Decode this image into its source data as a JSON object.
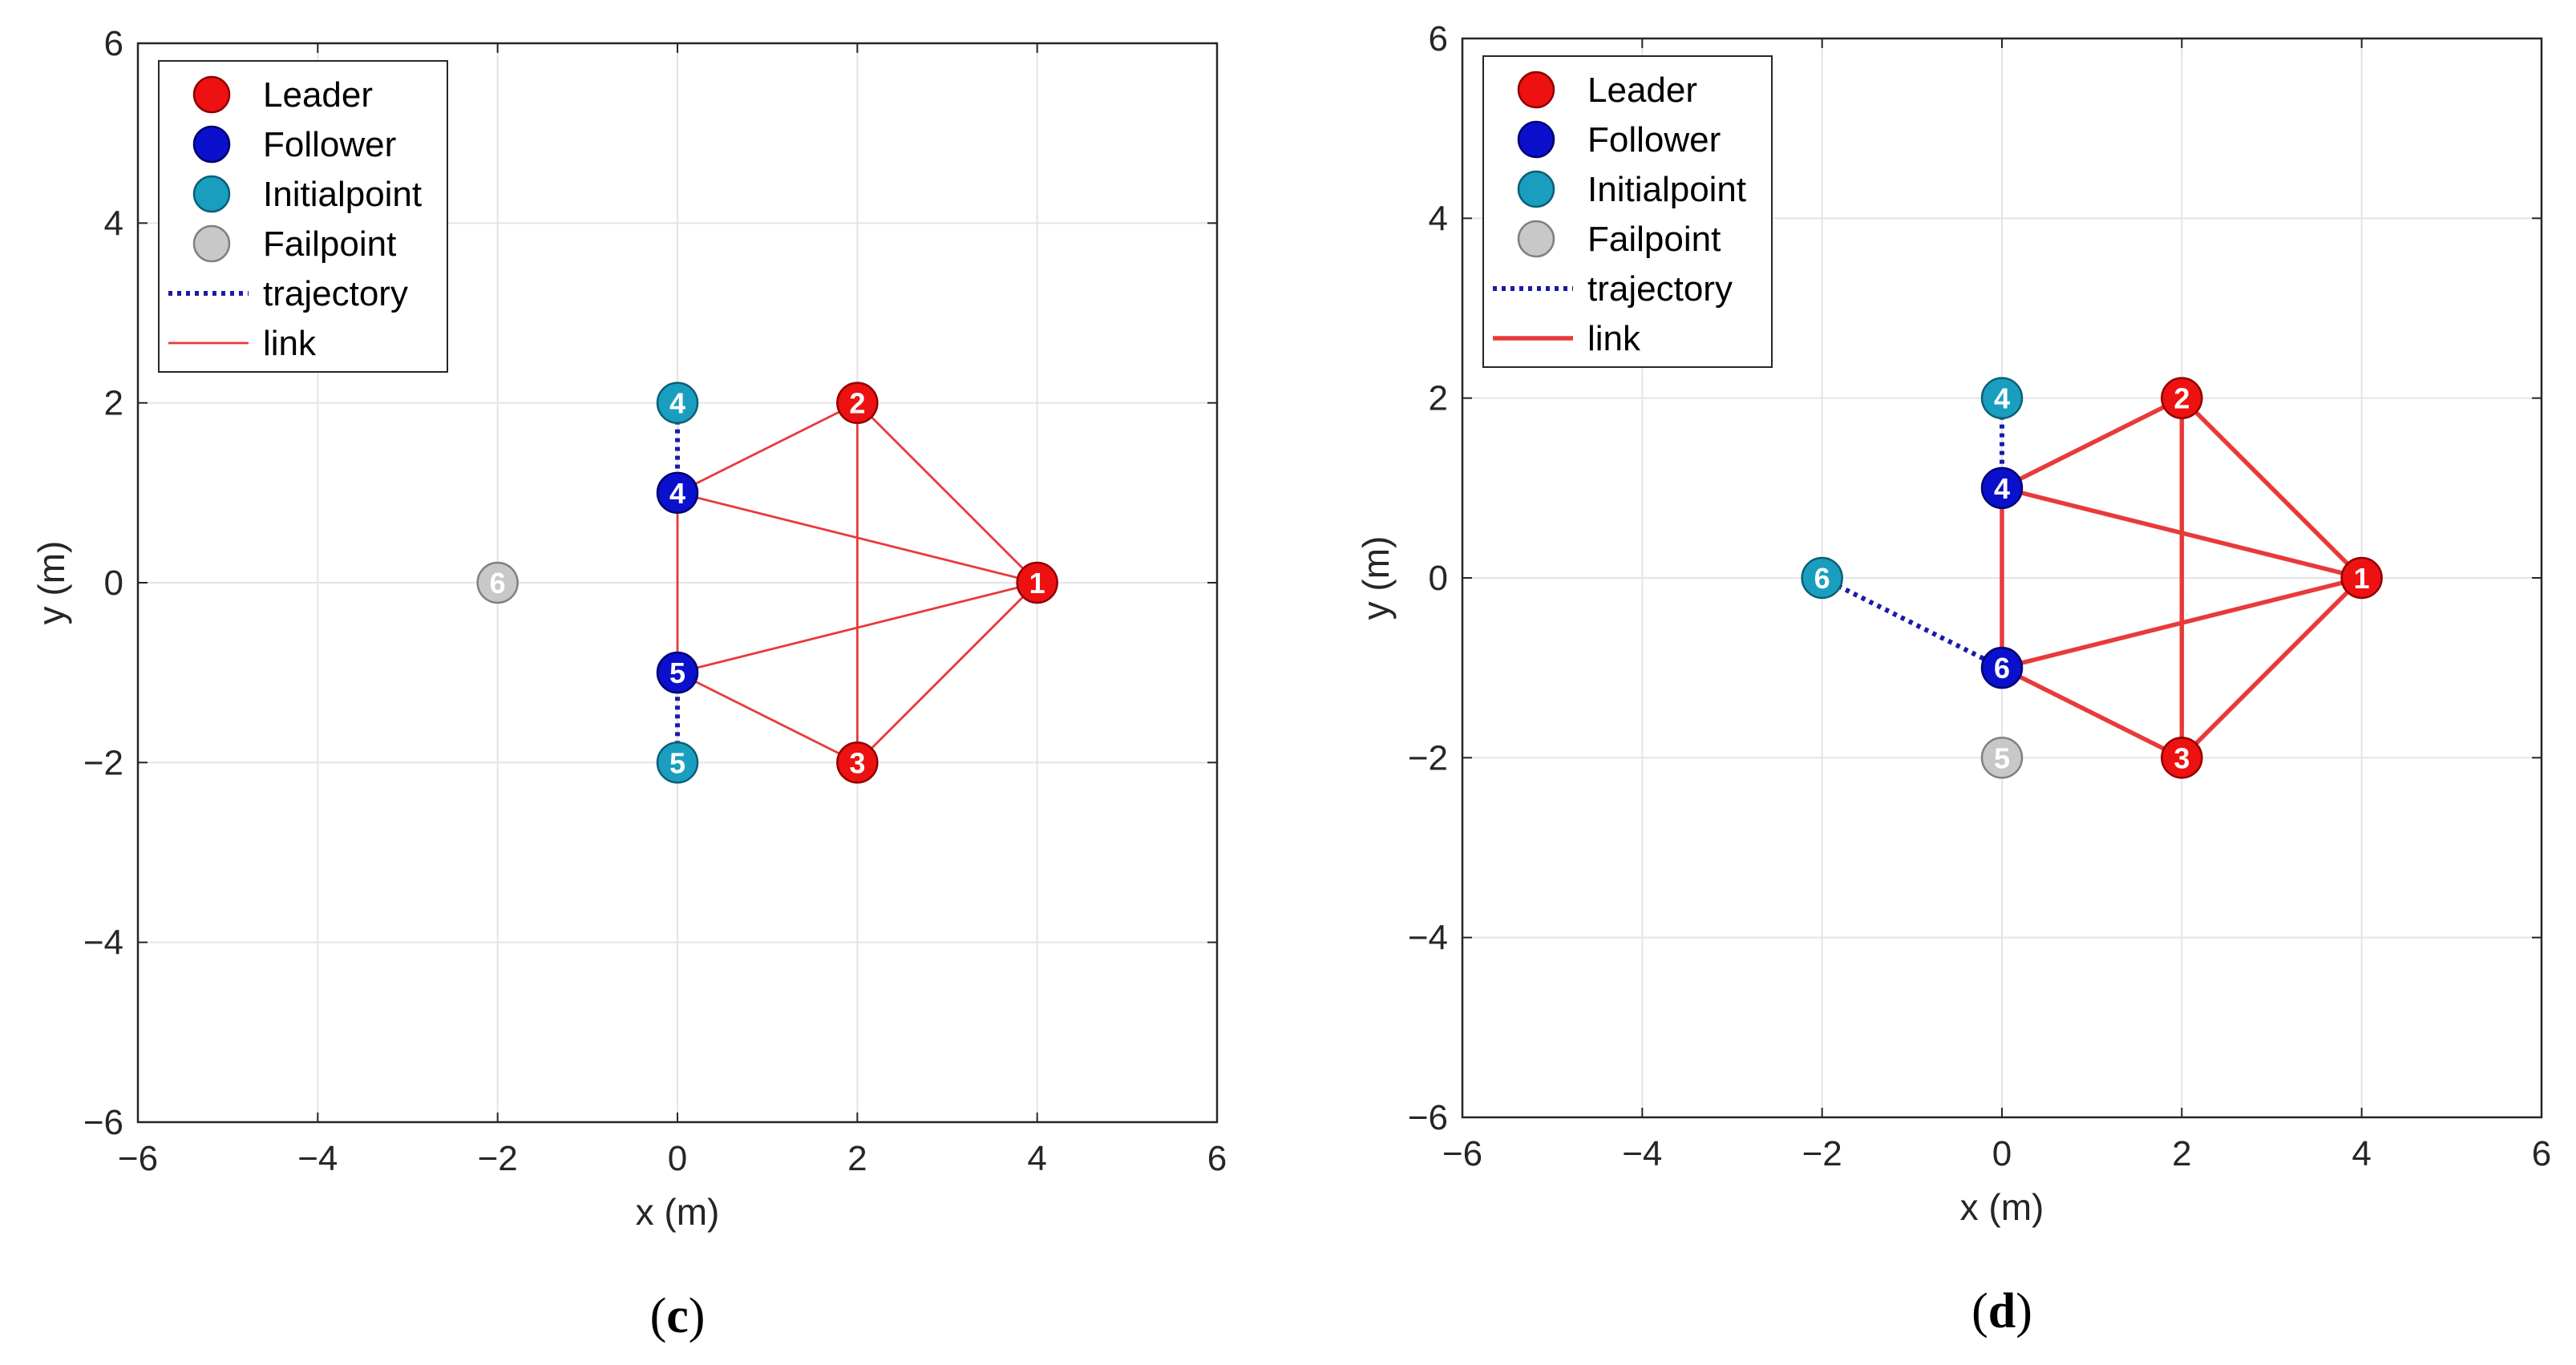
{
  "chart_data": [
    {
      "type": "scatter",
      "caption_letter": "c",
      "xlabel": "x (m)",
      "ylabel": "y (m)",
      "xlim": [
        -6,
        6
      ],
      "ylim": [
        -6,
        6
      ],
      "xticks": [
        -6,
        -4,
        -2,
        0,
        2,
        4,
        6
      ],
      "yticks": [
        -6,
        -4,
        -2,
        0,
        2,
        4,
        6
      ],
      "grid": true,
      "legend_position": "top-left",
      "link_weight": "thin",
      "legend": [
        {
          "label": "Leader",
          "kind": "marker",
          "role": "leader"
        },
        {
          "label": "Follower",
          "kind": "marker",
          "role": "follower"
        },
        {
          "label": "Initialpoint",
          "kind": "marker",
          "role": "initial"
        },
        {
          "label": "Failpoint",
          "kind": "marker",
          "role": "fail"
        },
        {
          "label": "trajectory",
          "kind": "dotted-line"
        },
        {
          "label": "link",
          "kind": "line"
        }
      ],
      "links": [
        [
          [
            4,
            0
          ],
          [
            2,
            2
          ]
        ],
        [
          [
            4,
            0
          ],
          [
            2,
            -2
          ]
        ],
        [
          [
            2,
            2
          ],
          [
            2,
            -2
          ]
        ],
        [
          [
            2,
            2
          ],
          [
            0,
            1
          ]
        ],
        [
          [
            2,
            -2
          ],
          [
            0,
            -1
          ]
        ],
        [
          [
            4,
            0
          ],
          [
            0,
            1
          ]
        ],
        [
          [
            4,
            0
          ],
          [
            0,
            -1
          ]
        ],
        [
          [
            0,
            1
          ],
          [
            0,
            -1
          ]
        ]
      ],
      "trajectories": [
        [
          [
            0,
            2
          ],
          [
            0,
            1
          ]
        ],
        [
          [
            0,
            -2
          ],
          [
            0,
            -1
          ]
        ]
      ],
      "points": [
        {
          "role": "fail",
          "label": "6",
          "x": -2,
          "y": 0
        },
        {
          "role": "initial",
          "label": "4",
          "x": 0,
          "y": 2
        },
        {
          "role": "initial",
          "label": "5",
          "x": 0,
          "y": -2
        },
        {
          "role": "follower",
          "label": "4",
          "x": 0,
          "y": 1
        },
        {
          "role": "follower",
          "label": "5",
          "x": 0,
          "y": -1
        },
        {
          "role": "leader",
          "label": "2",
          "x": 2,
          "y": 2
        },
        {
          "role": "leader",
          "label": "3",
          "x": 2,
          "y": -2
        },
        {
          "role": "leader",
          "label": "1",
          "x": 4,
          "y": 0
        }
      ]
    },
    {
      "type": "scatter",
      "caption_letter": "d",
      "xlabel": "x (m)",
      "ylabel": "y (m)",
      "xlim": [
        -6,
        6
      ],
      "ylim": [
        -6,
        6
      ],
      "xticks": [
        -6,
        -4,
        -2,
        0,
        2,
        4,
        6
      ],
      "yticks": [
        -6,
        -4,
        -2,
        0,
        2,
        4,
        6
      ],
      "grid": true,
      "legend_position": "top-left",
      "link_weight": "thick",
      "legend": [
        {
          "label": "Leader",
          "kind": "marker",
          "role": "leader"
        },
        {
          "label": "Follower",
          "kind": "marker",
          "role": "follower"
        },
        {
          "label": "Initialpoint",
          "kind": "marker",
          "role": "initial"
        },
        {
          "label": "Failpoint",
          "kind": "marker",
          "role": "fail"
        },
        {
          "label": "trajectory",
          "kind": "dotted-line"
        },
        {
          "label": "link",
          "kind": "line"
        }
      ],
      "links": [
        [
          [
            4,
            0
          ],
          [
            2,
            2
          ]
        ],
        [
          [
            4,
            0
          ],
          [
            2,
            -2
          ]
        ],
        [
          [
            2,
            2
          ],
          [
            2,
            -2
          ]
        ],
        [
          [
            2,
            2
          ],
          [
            0,
            1
          ]
        ],
        [
          [
            2,
            -2
          ],
          [
            0,
            -1
          ]
        ],
        [
          [
            4,
            0
          ],
          [
            0,
            1
          ]
        ],
        [
          [
            4,
            0
          ],
          [
            0,
            -1
          ]
        ],
        [
          [
            0,
            1
          ],
          [
            0,
            -1
          ]
        ]
      ],
      "trajectories": [
        [
          [
            0,
            2
          ],
          [
            0,
            1
          ]
        ],
        [
          [
            -2,
            0
          ],
          [
            0,
            -1
          ]
        ]
      ],
      "points": [
        {
          "role": "fail",
          "label": "5",
          "x": 0,
          "y": -2
        },
        {
          "role": "initial",
          "label": "4",
          "x": 0,
          "y": 2
        },
        {
          "role": "initial",
          "label": "6",
          "x": -2,
          "y": 0
        },
        {
          "role": "follower",
          "label": "4",
          "x": 0,
          "y": 1
        },
        {
          "role": "follower",
          "label": "6",
          "x": 0,
          "y": -1
        },
        {
          "role": "leader",
          "label": "2",
          "x": 2,
          "y": 2
        },
        {
          "role": "leader",
          "label": "3",
          "x": 2,
          "y": -2
        },
        {
          "role": "leader",
          "label": "1",
          "x": 4,
          "y": 0
        }
      ]
    }
  ],
  "colors": {
    "leader": "#ee1111",
    "follower": "#0a10cc",
    "initial": "#1a9ec0",
    "fail": "#c8c8c8",
    "link": "#e83a3a",
    "trajectory": "#1a1aa8",
    "grid": "#e4e4e4",
    "axis": "#262626"
  }
}
